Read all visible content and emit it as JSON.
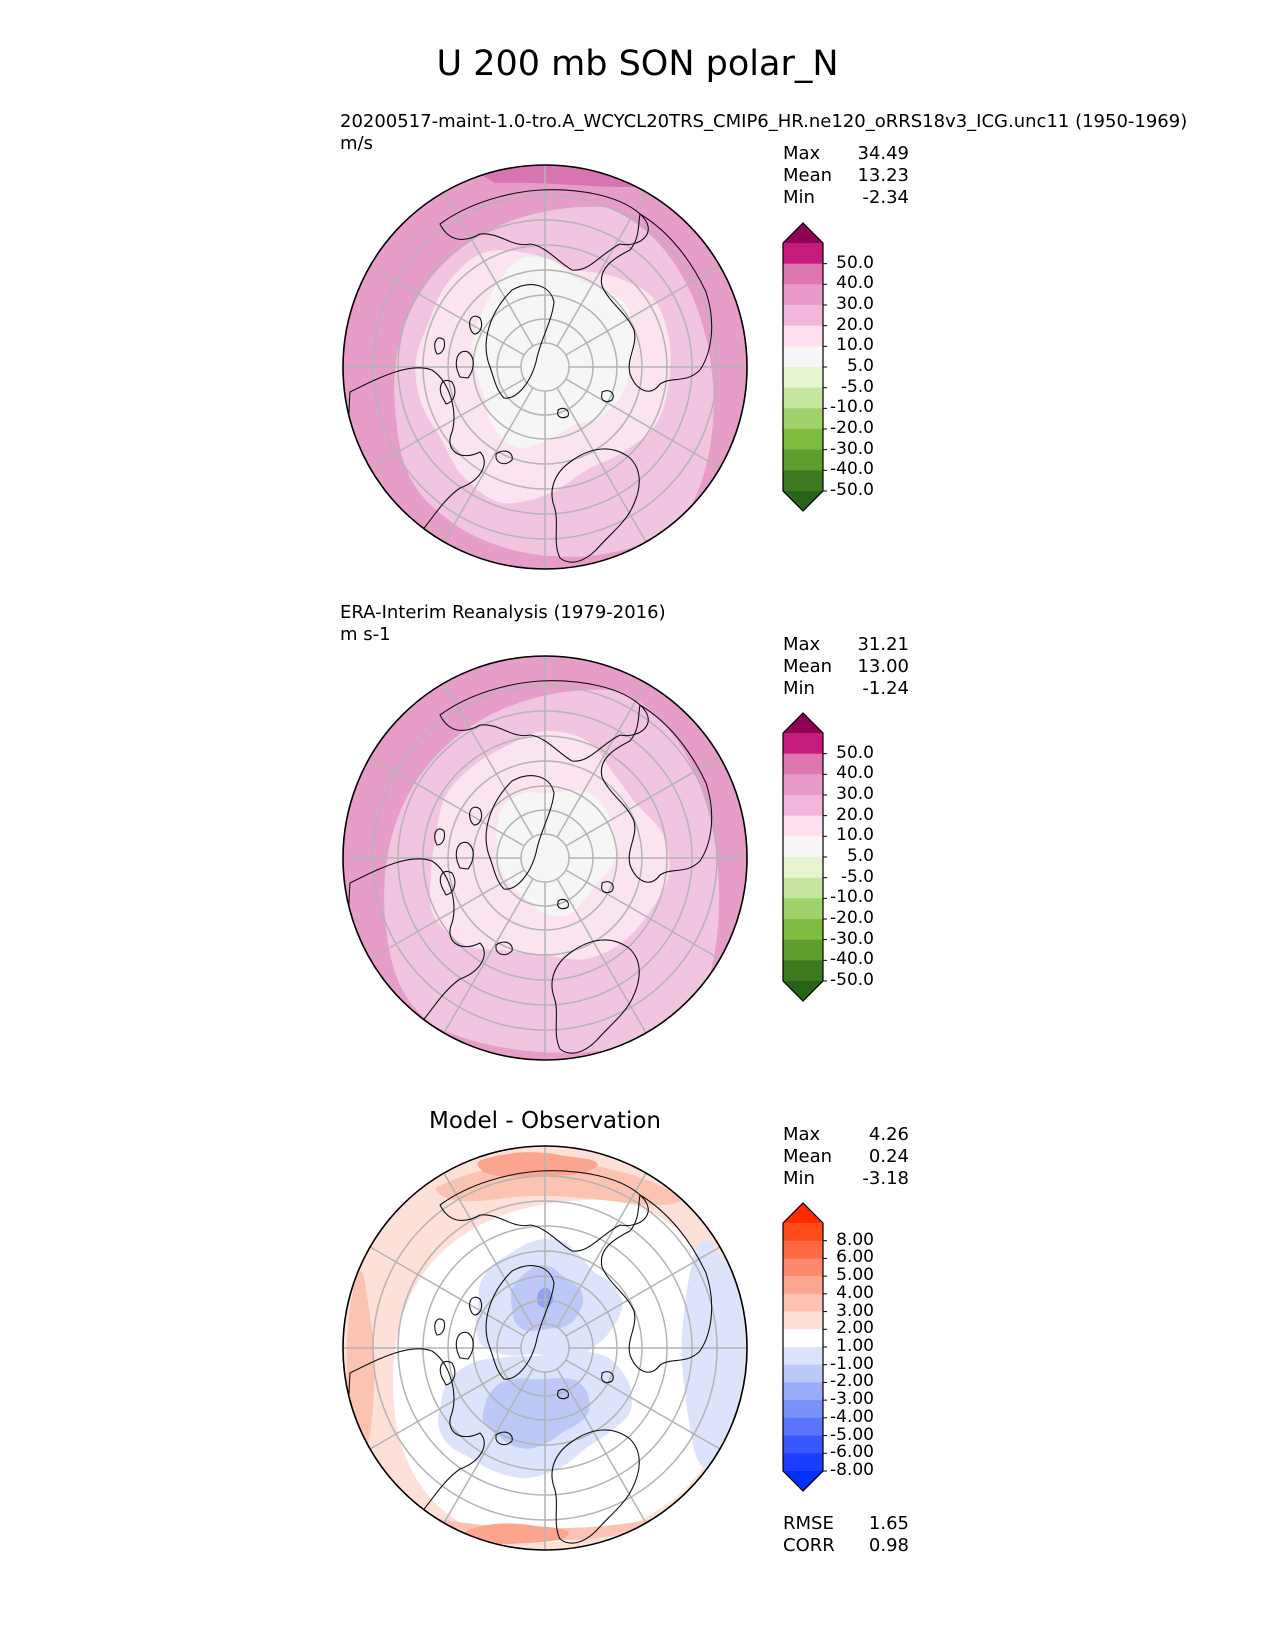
{
  "figure": {
    "title": "U 200 mb SON polar_N"
  },
  "panels": [
    {
      "title_lines": [
        "20200517-maint-1.0-tro.A_WCYCL20TRS_CMIP6_HR.ne120_oRRS18v3_ICG.unc11 (1950-1969)",
        "m/s"
      ],
      "stats": [
        {
          "label": "Max",
          "value": "34.49"
        },
        {
          "label": "Mean",
          "value": "13.23"
        },
        {
          "label": "Min",
          "value": "-2.34"
        }
      ],
      "colorbar": {
        "ticks": [
          "50.0",
          "40.0",
          "30.0",
          "20.0",
          "10.0",
          "5.0",
          "-5.0",
          "-10.0",
          "-20.0",
          "-30.0",
          "-40.0",
          "-50.0"
        ],
        "over_color": "#8e0152",
        "under_color": "#276419",
        "colors": [
          "#c51b7d",
          "#de77ae",
          "#e99ccc",
          "#f1b6da",
          "#fde0ef",
          "#f7f7f7",
          "#e6f5d0",
          "#c7e6a0",
          "#a0d16a",
          "#7fbc41",
          "#5e9d2f",
          "#3d7a1f"
        ]
      },
      "field": {
        "background": "#f1c4e0",
        "regions": [
          {
            "name": "jet-outer-ring",
            "color": "#e69ec8"
          },
          {
            "name": "subtropical-jet-core",
            "color": "#d974b3"
          },
          {
            "name": "midlatitude-band",
            "color": "#f1c4e0"
          },
          {
            "name": "subpolar-band",
            "color": "#fbe3ef"
          },
          {
            "name": "polar-calm",
            "color": "#f6f6f4"
          }
        ]
      }
    },
    {
      "title_lines": [
        "ERA-Interim Reanalysis (1979-2016)",
        "m s-1"
      ],
      "stats": [
        {
          "label": "Max",
          "value": "31.21"
        },
        {
          "label": "Mean",
          "value": "13.00"
        },
        {
          "label": "Min",
          "value": "-1.24"
        }
      ],
      "colorbar": {
        "ticks": [
          "50.0",
          "40.0",
          "30.0",
          "20.0",
          "10.0",
          "5.0",
          "-5.0",
          "-10.0",
          "-20.0",
          "-30.0",
          "-40.0",
          "-50.0"
        ],
        "over_color": "#8e0152",
        "under_color": "#276419",
        "colors": [
          "#c51b7d",
          "#de77ae",
          "#e99ccc",
          "#f1b6da",
          "#fde0ef",
          "#f7f7f7",
          "#e6f5d0",
          "#c7e6a0",
          "#a0d16a",
          "#7fbc41",
          "#5e9d2f",
          "#3d7a1f"
        ]
      },
      "field": {
        "background": "#f1c4e0",
        "regions": [
          {
            "name": "jet-outer-ring",
            "color": "#e69ec8"
          },
          {
            "name": "midlatitude-band",
            "color": "#f1c4e0"
          },
          {
            "name": "subpolar-band",
            "color": "#fbe3ef"
          },
          {
            "name": "polar-calm",
            "color": "#f6f6f4"
          }
        ]
      }
    },
    {
      "title_lines": [
        "Model - Observation"
      ],
      "stats": [
        {
          "label": "Max",
          "value": "4.26"
        },
        {
          "label": "Mean",
          "value": "0.24"
        },
        {
          "label": "Min",
          "value": "-3.18"
        }
      ],
      "extra_stats": [
        {
          "label": "RMSE",
          "value": "1.65"
        },
        {
          "label": "CORR",
          "value": "0.98"
        }
      ],
      "colorbar": {
        "ticks": [
          "8.00",
          "6.00",
          "5.00",
          "4.00",
          "3.00",
          "2.00",
          "1.00",
          "-1.00",
          "-2.00",
          "-3.00",
          "-4.00",
          "-5.00",
          "-6.00",
          "-8.00"
        ],
        "over_color": "#ff2a00",
        "under_color": "#0030ff",
        "colors": [
          "#ff4a1a",
          "#ff6a45",
          "#fb8a6e",
          "#fca690",
          "#fdc2b2",
          "#fee0d7",
          "#ffffff",
          "#dce2fb",
          "#bcc7fa",
          "#9aabf9",
          "#7a90fb",
          "#5a74fc",
          "#3a57fd",
          "#1c3dfe"
        ]
      },
      "field": {
        "background": "#ffffff",
        "regions": [
          {
            "name": "positive-weak",
            "color": "#fde0d7"
          },
          {
            "name": "positive-moderate",
            "color": "#fcc2b2"
          },
          {
            "name": "positive-strong",
            "color": "#fba48e"
          },
          {
            "name": "negative-weak",
            "color": "#dde3fa"
          },
          {
            "name": "negative-moderate",
            "color": "#bdc8f8"
          },
          {
            "name": "negative-strong",
            "color": "#8fa2f5"
          }
        ]
      }
    }
  ],
  "chart_data": [
    {
      "type": "heatmap",
      "projection": "north polar stereographic",
      "title": "20200517-maint-1.0-tro.A_WCYCL20TRS_CMIP6_HR.ne120_oRRS18v3_ICG.unc11 (1950-1969)",
      "units": "m/s",
      "levels": [
        -50,
        -40,
        -30,
        -20,
        -10,
        -5,
        5,
        10,
        20,
        30,
        40,
        50
      ],
      "max": 34.49,
      "mean": 13.23,
      "min": -2.34
    },
    {
      "type": "heatmap",
      "projection": "north polar stereographic",
      "title": "ERA-Interim Reanalysis (1979-2016)",
      "units": "m s-1",
      "levels": [
        -50,
        -40,
        -30,
        -20,
        -10,
        -5,
        5,
        10,
        20,
        30,
        40,
        50
      ],
      "max": 31.21,
      "mean": 13.0,
      "min": -1.24
    },
    {
      "type": "heatmap",
      "projection": "north polar stereographic",
      "title": "Model - Observation",
      "levels": [
        -8,
        -6,
        -5,
        -4,
        -3,
        -2,
        -1,
        1,
        2,
        3,
        4,
        5,
        6,
        8
      ],
      "max": 4.26,
      "mean": 0.24,
      "min": -3.18,
      "rmse": 1.65,
      "corr": 0.98
    }
  ]
}
